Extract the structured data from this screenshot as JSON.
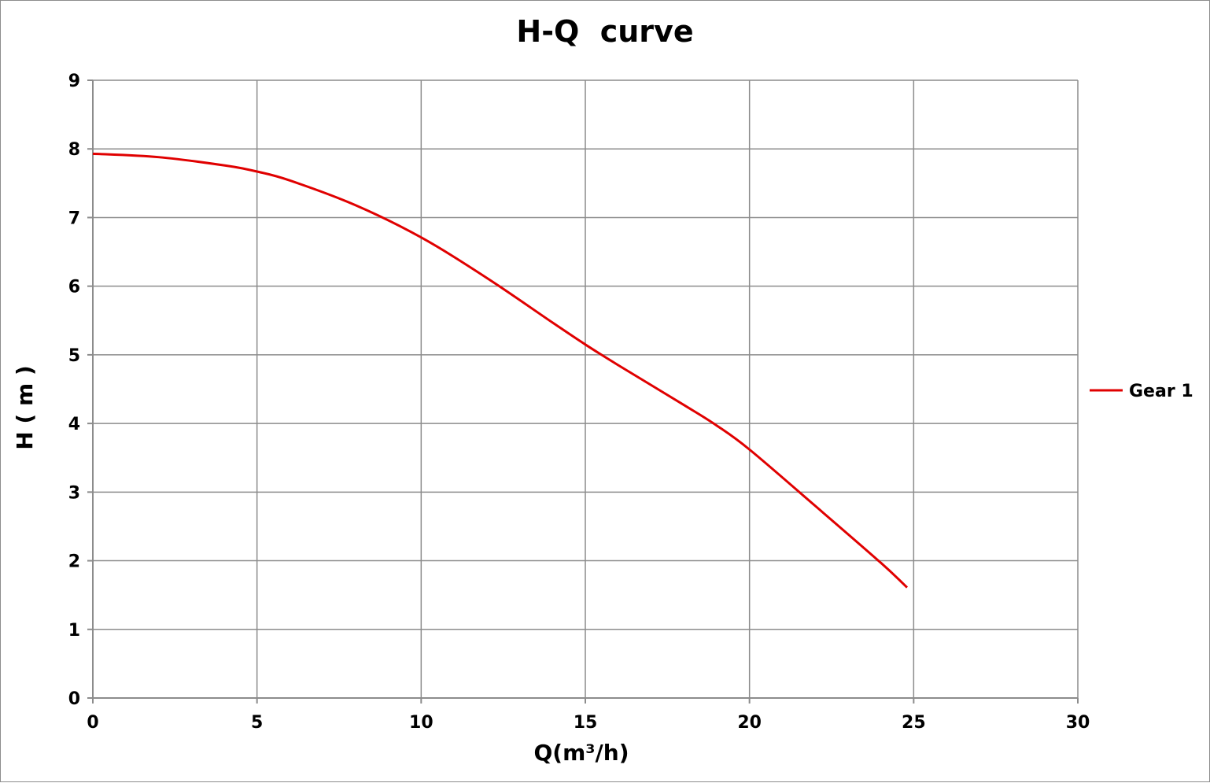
{
  "chart_data": {
    "type": "line",
    "title": "H-Q  curve",
    "xlabel": "Q(m³/h)",
    "ylabel": "H ( m )",
    "xlim": [
      0,
      30
    ],
    "ylim": [
      0,
      9
    ],
    "x_ticks": [
      "0",
      "5",
      "10",
      "15",
      "20",
      "25",
      "30"
    ],
    "y_ticks": [
      "0",
      "1",
      "2",
      "3",
      "4",
      "5",
      "6",
      "7",
      "8",
      "9"
    ],
    "grid": true,
    "legend_position": "right",
    "series": [
      {
        "name": "Gear 1",
        "color": "#e00000",
        "x": [
          0,
          2,
          4,
          5,
          6,
          8,
          10,
          12,
          14,
          15,
          16,
          18,
          19,
          20,
          22,
          24,
          24.8
        ],
        "y": [
          7.93,
          7.88,
          7.76,
          7.67,
          7.54,
          7.18,
          6.71,
          6.12,
          5.47,
          5.15,
          4.85,
          4.27,
          3.97,
          3.62,
          2.8,
          1.97,
          1.61
        ]
      }
    ]
  }
}
